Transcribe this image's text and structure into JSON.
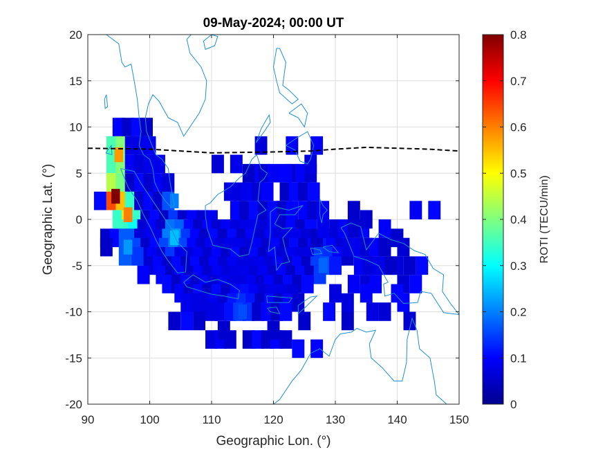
{
  "chart_data": {
    "type": "heatmap",
    "title": "09-May-2024; 00:00 UT",
    "xlabel": "Geographic Lon. (°)",
    "ylabel": "Geographic Lat. (°)",
    "xlim": [
      90,
      150
    ],
    "ylim": [
      -20,
      20
    ],
    "x_ticks": [
      "90",
      "100",
      "110",
      "120",
      "130",
      "140",
      "150"
    ],
    "y_ticks": [
      "20",
      "15",
      "10",
      "5",
      "0",
      "-5",
      "-10",
      "-15",
      "-20"
    ],
    "grid": true,
    "colormap": "jet",
    "colorbar": {
      "label": "ROTI (TECU/min)",
      "range": [
        0,
        0.8
      ],
      "ticks": [
        "0.8",
        "0.7",
        "0.6",
        "0.5",
        "0.4",
        "0.3",
        "0.2",
        "0.1",
        "0"
      ]
    },
    "cell_size_deg": 2,
    "base_value": 0.08,
    "magnetic_equator": {
      "style": "dashed",
      "color": "#000000",
      "points": [
        [
          90,
          7.7
        ],
        [
          100,
          7.6
        ],
        [
          110,
          7.2
        ],
        [
          120,
          7.3
        ],
        [
          126,
          7.4
        ],
        [
          130,
          7.6
        ],
        [
          135,
          7.8
        ],
        [
          140,
          7.7
        ],
        [
          145,
          7.6
        ],
        [
          150,
          7.4
        ]
      ]
    },
    "coverage_strips": [
      {
        "lat": 10,
        "lon": [
          95,
          100
        ]
      },
      {
        "lat": 8,
        "lon": [
          94,
          101
        ]
      },
      {
        "lat": 6,
        "lon": [
          94,
          102
        ]
      },
      {
        "lat": 4,
        "lon": [
          94,
          103
        ]
      },
      {
        "lat": 2,
        "lon": [
          94,
          104
        ]
      },
      {
        "lat": 0,
        "lon": [
          95,
          110
        ]
      },
      {
        "lat": -1,
        "lon": [
          96,
          126
        ]
      },
      {
        "lat": -2,
        "lon": [
          97,
          130
        ]
      },
      {
        "lat": -3,
        "lon": [
          98,
          131
        ]
      },
      {
        "lat": -4,
        "lon": [
          99,
          132
        ]
      },
      {
        "lat": -5,
        "lon": [
          100,
          131
        ]
      },
      {
        "lat": -6,
        "lon": [
          102,
          128
        ]
      },
      {
        "lat": -7,
        "lon": [
          103,
          126
        ]
      },
      {
        "lat": -8,
        "lon": [
          105,
          124
        ]
      },
      {
        "lat": -9,
        "lon": [
          106,
          124
        ]
      },
      {
        "lat": -10,
        "lon": [
          110,
          122
        ]
      },
      {
        "lat": -13,
        "lon": [
          110,
          114
        ]
      },
      {
        "lat": -13,
        "lon": [
          116,
          122
        ]
      },
      {
        "lat": -2,
        "lon": [
          93,
          96
        ]
      },
      {
        "lat": 2,
        "lon": [
          92,
          93
        ]
      },
      {
        "lat": 5,
        "lon": [
          117,
          120
        ]
      },
      {
        "lat": 3,
        "lon": [
          113,
          120
        ]
      },
      {
        "lat": 1,
        "lon": [
          114,
          124
        ]
      },
      {
        "lat": 5,
        "lon": [
          123,
          126
        ]
      },
      {
        "lat": 3,
        "lon": [
          122,
          127
        ]
      },
      {
        "lat": 1,
        "lon": [
          125,
          128
        ]
      },
      {
        "lat": -1,
        "lon": [
          130,
          135
        ]
      },
      {
        "lat": -3,
        "lon": [
          132,
          138
        ]
      },
      {
        "lat": -5,
        "lon": [
          134,
          140
        ]
      },
      {
        "lat": -7,
        "lon": [
          135,
          137
        ]
      }
    ],
    "coverage_cells": [
      [
        118,
        8
      ],
      [
        127,
        8
      ],
      [
        123,
        8
      ],
      [
        126,
        6
      ],
      [
        122,
        5
      ],
      [
        111,
        6
      ],
      [
        114,
        6
      ],
      [
        116,
        5
      ],
      [
        104,
        -11
      ],
      [
        106,
        -11
      ],
      [
        108,
        -11
      ],
      [
        112,
        -12
      ],
      [
        120,
        -12
      ],
      [
        124,
        -14
      ],
      [
        127,
        -14
      ],
      [
        129,
        -10
      ],
      [
        132,
        -11
      ],
      [
        125,
        -11
      ],
      [
        127,
        -2
      ],
      [
        128,
        -1
      ],
      [
        133,
        -1
      ],
      [
        133,
        1
      ],
      [
        135,
        0
      ],
      [
        138,
        -1
      ],
      [
        140,
        -2
      ],
      [
        141,
        -3
      ],
      [
        130,
        -5
      ],
      [
        133,
        -7
      ],
      [
        130,
        -8
      ],
      [
        135,
        -8
      ],
      [
        136,
        -10
      ],
      [
        138,
        -10
      ],
      [
        139,
        -5
      ],
      [
        141,
        -7
      ],
      [
        142,
        -5
      ],
      [
        144,
        -5
      ],
      [
        143,
        -7
      ],
      [
        140,
        -8
      ],
      [
        141,
        -9
      ],
      [
        143,
        1
      ],
      [
        146,
        1
      ],
      [
        142,
        -11
      ],
      [
        132,
        -9
      ],
      [
        93,
        -3
      ],
      [
        96,
        -4
      ],
      [
        98,
        -4
      ],
      [
        99,
        -6
      ]
    ],
    "hotspots": [
      {
        "lon": 95,
        "lat": 7,
        "value": 0.58
      },
      {
        "lon": 94.5,
        "lat": 2.5,
        "value": 0.8
      },
      {
        "lon": 96.5,
        "lat": 0.5,
        "value": 0.6
      },
      {
        "lon": 96.5,
        "lat": -3,
        "value": 0.22
      },
      {
        "lon": 104,
        "lat": -2,
        "value": 0.25
      },
      {
        "lon": 104,
        "lat": 2,
        "value": 0.2
      },
      {
        "lon": 128,
        "lat": -5,
        "value": 0.18
      },
      {
        "lon": 115,
        "lat": -10,
        "value": 0.16
      }
    ],
    "coastlines": [
      [
        [
          93,
          20
        ],
        [
          95,
          19
        ],
        [
          95.5,
          17
        ],
        [
          96,
          16.5
        ],
        [
          97,
          16.8
        ],
        [
          97.5,
          15
        ],
        [
          98,
          13
        ],
        [
          98.3,
          11
        ],
        [
          98.6,
          9.5
        ],
        [
          98.3,
          8
        ],
        [
          99,
          7
        ],
        [
          100,
          6.5
        ],
        [
          100.5,
          5.5
        ],
        [
          100.8,
          4
        ],
        [
          101.5,
          3
        ],
        [
          102.5,
          2
        ],
        [
          103.5,
          1.3
        ],
        [
          104,
          1.5
        ],
        [
          103.7,
          2.5
        ],
        [
          103.3,
          4
        ],
        [
          103,
          5.5
        ],
        [
          102,
          6.5
        ],
        [
          101,
          7
        ],
        [
          100.2,
          8.3
        ],
        [
          99.5,
          9.5
        ],
        [
          99.3,
          11
        ],
        [
          99.8,
          12.5
        ],
        [
          100.5,
          13.5
        ],
        [
          101.5,
          12.8
        ],
        [
          103,
          11
        ],
        [
          104.5,
          10.5
        ],
        [
          105.5,
          9
        ],
        [
          106.5,
          10
        ],
        [
          108,
          11.5
        ],
        [
          109,
          13
        ],
        [
          109.2,
          15
        ],
        [
          108.3,
          16.5
        ],
        [
          106.5,
          18
        ],
        [
          106,
          19.5
        ],
        [
          106.7,
          20
        ]
      ],
      [
        [
          95.3,
          5.5
        ],
        [
          97.5,
          5.2
        ],
        [
          98.5,
          4
        ],
        [
          100.5,
          2
        ],
        [
          102,
          0.5
        ],
        [
          103.5,
          -1
        ],
        [
          104.5,
          -2.5
        ],
        [
          106,
          -3.5
        ],
        [
          105.8,
          -5.7
        ],
        [
          104.5,
          -5.8
        ],
        [
          103,
          -4.5
        ],
        [
          102,
          -3.5
        ],
        [
          101,
          -2.2
        ],
        [
          100.2,
          -1
        ],
        [
          99,
          0.5
        ],
        [
          98,
          2
        ],
        [
          96.5,
          3.5
        ],
        [
          95.3,
          5.5
        ]
      ],
      [
        [
          105.5,
          -6.8
        ],
        [
          107,
          -6
        ],
        [
          109,
          -6.8
        ],
        [
          111,
          -6.5
        ],
        [
          113,
          -7
        ],
        [
          114.5,
          -7.7
        ],
        [
          114.3,
          -8.6
        ],
        [
          112,
          -8.3
        ],
        [
          110,
          -8.1
        ],
        [
          108,
          -7.7
        ],
        [
          106,
          -7.3
        ],
        [
          105.5,
          -6.8
        ]
      ],
      [
        [
          109,
          1.5
        ],
        [
          109.8,
          1.8
        ],
        [
          111,
          2.7
        ],
        [
          113,
          3.5
        ],
        [
          114.5,
          4.5
        ],
        [
          115.5,
          5
        ],
        [
          116.5,
          6.5
        ],
        [
          117.3,
          7
        ],
        [
          118,
          5.5
        ],
        [
          119,
          5
        ],
        [
          118.5,
          4.4
        ],
        [
          117.8,
          4
        ],
        [
          117.5,
          2
        ],
        [
          118.8,
          1
        ],
        [
          117.5,
          0.5
        ],
        [
          117,
          -1
        ],
        [
          116.5,
          -2.5
        ],
        [
          116,
          -3.8
        ],
        [
          114.5,
          -4
        ],
        [
          113,
          -3.2
        ],
        [
          111.5,
          -3
        ],
        [
          110.2,
          -2.8
        ],
        [
          109.3,
          -1
        ],
        [
          109,
          0.5
        ],
        [
          109,
          1.5
        ]
      ],
      [
        [
          119.5,
          0.8
        ],
        [
          120.5,
          1.3
        ],
        [
          122.5,
          1
        ],
        [
          124.7,
          1.5
        ],
        [
          123.5,
          0.5
        ],
        [
          121,
          0.5
        ],
        [
          120.2,
          -0.5
        ],
        [
          121.5,
          -1
        ],
        [
          123,
          -0.9
        ],
        [
          121.5,
          -2
        ],
        [
          122,
          -3.5
        ],
        [
          122.6,
          -4.6
        ],
        [
          121.3,
          -4.8
        ],
        [
          120.5,
          -5.5
        ],
        [
          120.2,
          -3
        ],
        [
          119.2,
          -3.5
        ],
        [
          119.5,
          -1.5
        ],
        [
          119.5,
          0.8
        ]
      ],
      [
        [
          127.5,
          2.2
        ],
        [
          128,
          1.5
        ],
        [
          128.7,
          1
        ],
        [
          128,
          0.5
        ],
        [
          127.8,
          -0.4
        ],
        [
          127.5,
          0.5
        ],
        [
          127.5,
          2.2
        ]
      ],
      [
        [
          130.9,
          -0.9
        ],
        [
          132.5,
          -0.4
        ],
        [
          134.1,
          -0.8
        ],
        [
          135,
          -3.3
        ],
        [
          137,
          -1.5
        ],
        [
          139,
          -2.2
        ],
        [
          141,
          -2.6
        ],
        [
          142.8,
          -3.4
        ],
        [
          144.5,
          -3.8
        ],
        [
          145.8,
          -5.3
        ],
        [
          147.5,
          -6
        ],
        [
          147.3,
          -7.8
        ],
        [
          148.6,
          -9.1
        ],
        [
          150,
          -10.3
        ],
        [
          147.5,
          -10.1
        ],
        [
          145.5,
          -8
        ],
        [
          143.8,
          -7.8
        ],
        [
          143.3,
          -9
        ],
        [
          141,
          -9.1
        ],
        [
          139.5,
          -8
        ],
        [
          138,
          -8.3
        ],
        [
          137.8,
          -7
        ],
        [
          138.5,
          -6.8
        ],
        [
          137,
          -5
        ],
        [
          135,
          -4.4
        ],
        [
          133,
          -4
        ],
        [
          132.3,
          -2.8
        ],
        [
          131.5,
          -1.5
        ],
        [
          130.9,
          -0.9
        ]
      ],
      [
        [
          120,
          -20
        ],
        [
          121,
          -19.5
        ],
        [
          123,
          -17.5
        ],
        [
          124.5,
          -16.3
        ],
        [
          126,
          -14.5
        ],
        [
          127.5,
          -14
        ],
        [
          129,
          -14.8
        ],
        [
          130,
          -13
        ],
        [
          130.8,
          -12.4
        ],
        [
          132.6,
          -12.2
        ],
        [
          133.5,
          -11.8
        ],
        [
          135,
          -12.2
        ],
        [
          136.5,
          -12
        ],
        [
          135.5,
          -13.5
        ],
        [
          135.8,
          -15
        ],
        [
          137.5,
          -16
        ],
        [
          139.5,
          -17.5
        ],
        [
          140.8,
          -17.5
        ],
        [
          141.5,
          -15.5
        ],
        [
          141.6,
          -13
        ],
        [
          142.4,
          -10.7
        ],
        [
          143.2,
          -12
        ],
        [
          143.6,
          -14
        ],
        [
          145.3,
          -15
        ],
        [
          146,
          -17.5
        ],
        [
          146.3,
          -19
        ],
        [
          148,
          -20
        ]
      ],
      [
        [
          118.9,
          -8.3
        ],
        [
          123,
          -8.5
        ],
        [
          122.5,
          -9
        ],
        [
          119,
          -9
        ],
        [
          118.9,
          -8.3
        ]
      ],
      [
        [
          119,
          -9.6
        ],
        [
          120.5,
          -9.5
        ],
        [
          121,
          -10.2
        ],
        [
          119.5,
          -10
        ],
        [
          119,
          -9.6
        ]
      ],
      [
        [
          124,
          -9.3
        ],
        [
          126,
          -8.4
        ],
        [
          127,
          -8.3
        ],
        [
          125,
          -9.6
        ],
        [
          124,
          -10.2
        ],
        [
          124,
          -9.3
        ]
      ],
      [
        [
          126,
          -3.1
        ],
        [
          127.5,
          -3.3
        ],
        [
          127.8,
          -3.7
        ],
        [
          126.3,
          -3.8
        ],
        [
          126,
          -3.1
        ]
      ],
      [
        [
          128,
          -3
        ],
        [
          129.5,
          -2.8
        ],
        [
          130.5,
          -3.6
        ],
        [
          129,
          -3.5
        ],
        [
          128,
          -3
        ]
      ],
      [
        [
          121,
          18.5
        ],
        [
          122,
          17
        ],
        [
          121.5,
          14.5
        ],
        [
          122.5,
          14
        ],
        [
          124,
          13
        ],
        [
          123,
          12.5
        ],
        [
          121,
          13.7
        ],
        [
          120.5,
          15
        ],
        [
          120,
          16.5
        ],
        [
          120.5,
          18.5
        ],
        [
          121,
          18.5
        ]
      ],
      [
        [
          122.5,
          11.5
        ],
        [
          124,
          11
        ],
        [
          125,
          10
        ],
        [
          125.5,
          11.5
        ],
        [
          124.5,
          12.5
        ],
        [
          122.5,
          11.5
        ]
      ],
      [
        [
          122,
          8
        ],
        [
          123.5,
          8.7
        ],
        [
          125.5,
          9.5
        ],
        [
          126.5,
          8
        ],
        [
          126,
          6.5
        ],
        [
          125.5,
          6
        ],
        [
          124.3,
          6.3
        ],
        [
          123.5,
          7.5
        ],
        [
          122,
          8
        ]
      ],
      [
        [
          117.2,
          8.3
        ],
        [
          118.5,
          9.5
        ],
        [
          119.5,
          10.5
        ],
        [
          119.3,
          11.3
        ],
        [
          118,
          9.8
        ],
        [
          117.2,
          8.3
        ]
      ],
      [
        [
          109,
          18.4
        ],
        [
          110.5,
          18.8
        ],
        [
          111,
          19.8
        ],
        [
          110,
          20
        ],
        [
          108.7,
          19.3
        ],
        [
          109,
          18.4
        ]
      ],
      [
        [
          93,
          13.5
        ],
        [
          93.2,
          12.2
        ],
        [
          92.8,
          12
        ],
        [
          92.7,
          13
        ],
        [
          93,
          13.5
        ]
      ],
      [
        [
          92.9,
          7.2
        ],
        [
          93.9,
          7.0
        ],
        [
          93.8,
          8.0
        ],
        [
          92.9,
          7.2
        ]
      ]
    ]
  }
}
